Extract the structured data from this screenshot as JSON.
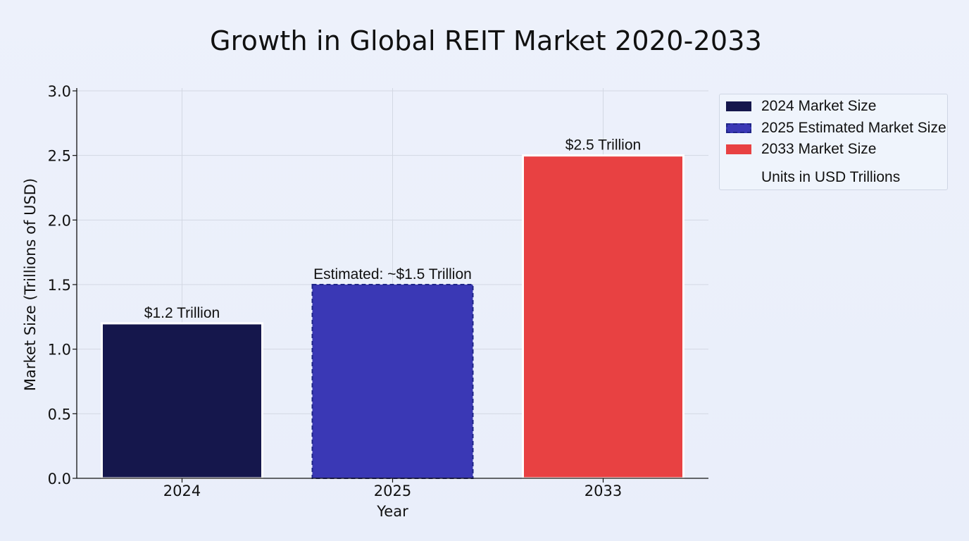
{
  "chart_data": {
    "type": "bar",
    "title": "Growth in Global REIT Market 2020-2033",
    "xlabel": "Year",
    "ylabel": "Market Size (Trillions of USD)",
    "categories": [
      "2024",
      "2025",
      "2033"
    ],
    "values": [
      1.2,
      1.5,
      2.5
    ],
    "data_labels": [
      "$1.2 Trillion",
      "Estimated: ~$1.5 Trillion",
      "$2.5 Trillion"
    ],
    "bar_colors": [
      "#15174c",
      "#3a38b5",
      "#e84142"
    ],
    "bar_styles": [
      "solid",
      "dashed",
      "solid"
    ],
    "ylim": [
      0,
      3
    ],
    "yticks": [
      "0.0",
      "0.5",
      "1.0",
      "1.5",
      "2.0",
      "2.5",
      "3.0"
    ],
    "grid": true,
    "legend": {
      "placement": "right",
      "entries": [
        {
          "label": "2024 Market Size",
          "color": "#15174c",
          "style": "solid"
        },
        {
          "label": "2025 Estimated Market Size",
          "color": "#3a38b5",
          "style": "dashed"
        },
        {
          "label": "2033 Market Size",
          "color": "#e84142",
          "style": "solid"
        }
      ],
      "note": "Units in USD Trillions"
    }
  }
}
